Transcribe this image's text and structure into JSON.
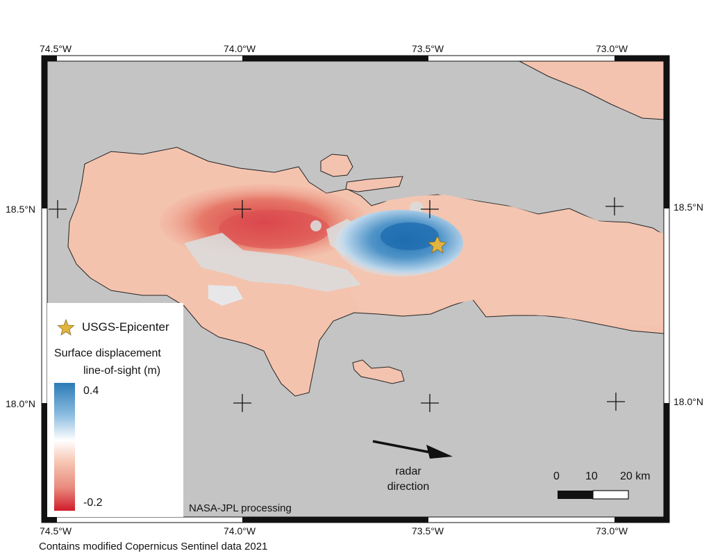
{
  "lon_labels": [
    "74.5°W",
    "74.0°W",
    "73.5°W",
    "73.0°W"
  ],
  "lat_labels": [
    "18.5°N",
    "18.0°N"
  ],
  "legend": {
    "epicenter_label": "USGS-Epicenter",
    "title_line1": "Surface displacement",
    "title_line2": "line-of-sight (m)",
    "colorbar_max": "0.4",
    "colorbar_min": "-0.2",
    "colors": [
      "#2c7bb6",
      "#ffffff",
      "#d01c2b"
    ]
  },
  "radar": {
    "line1": "radar",
    "line2": "direction"
  },
  "scalebar": {
    "labels": [
      "0",
      "10",
      "20 km"
    ]
  },
  "credits": {
    "processing": "NASA-JPL processing",
    "data_source": "Contains modified Copernicus Sentinel data 2021"
  },
  "colors": {
    "sea": "#c4c4c4",
    "land_base": "#f4c4b0",
    "uplift": "#2a78b8",
    "subsidence": "#d63c3c",
    "epicenter": "#e2b440"
  }
}
